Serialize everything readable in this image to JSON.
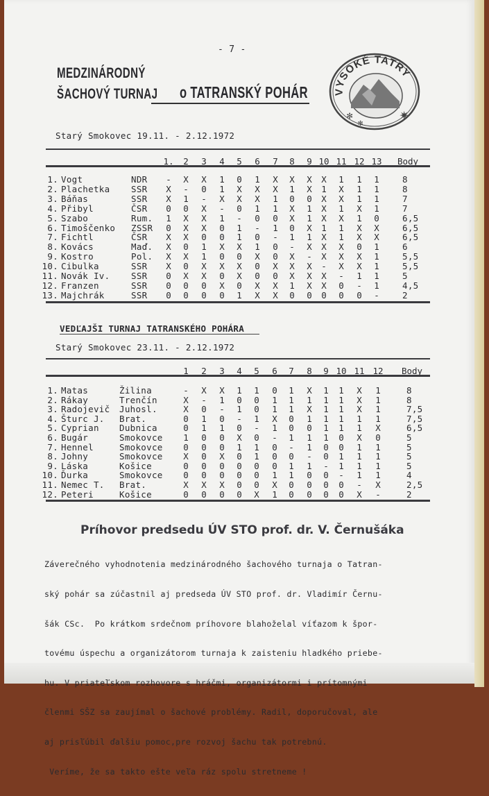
{
  "page_number": "- 7 -",
  "header": {
    "line1": "MEDZINÁRODNÝ",
    "line2": "ŠACHOVÝ TURNAJ",
    "cup": "o TATRANSKÝ POHÁR",
    "emblem_text": "VYSOKÉ TATRY"
  },
  "main_tournament": {
    "place_date": "Starý Smokovec 19.11. - 2.12.1972",
    "columns": [
      "1.",
      "2",
      "3",
      "4",
      "5",
      "6",
      "7",
      "8",
      "9",
      "10",
      "11",
      "12",
      "13"
    ],
    "points_header": "Body",
    "rows": [
      {
        "rank": "1.",
        "name": "Vogt",
        "country": "NDR",
        "results": [
          "-",
          "X",
          "X",
          "1",
          "0",
          "1",
          "X",
          "X",
          "X",
          "X",
          "1",
          "1",
          "1"
        ],
        "points": "8"
      },
      {
        "rank": "2.",
        "name": "Plachetka",
        "country": "SSR",
        "results": [
          "X",
          "-",
          "0",
          "1",
          "X",
          "X",
          "X",
          "1",
          "X",
          "1",
          "X",
          "1",
          "1"
        ],
        "points": "8"
      },
      {
        "rank": "3.",
        "name": "Báňas",
        "country": "SSR",
        "results": [
          "X",
          "1",
          "-",
          "X",
          "X",
          "X",
          "1",
          "0",
          "0",
          "X",
          "X",
          "1",
          "1"
        ],
        "points": "7"
      },
      {
        "rank": "4.",
        "name": "Přibyl",
        "country": "ČSR",
        "results": [
          "0",
          "0",
          "X",
          "-",
          "0",
          "1",
          "1",
          "X",
          "1",
          "X",
          "1",
          "X",
          "1"
        ],
        "points": "7"
      },
      {
        "rank": "5.",
        "name": "Szabo",
        "country": "Rum.",
        "results": [
          "1",
          "X",
          "X",
          "1",
          "-",
          "0",
          "0",
          "X",
          "1",
          "X",
          "X",
          "1",
          "0"
        ],
        "points": "6,5"
      },
      {
        "rank": "6.",
        "name": "Timoščenko",
        "country": "ZSSR",
        "results": [
          "0",
          "X",
          "X",
          "0",
          "1",
          "-",
          "1",
          "0",
          "X",
          "1",
          "1",
          "X",
          "X"
        ],
        "points": "6,5"
      },
      {
        "rank": "7.",
        "name": "Fichtl",
        "country": "ČSR",
        "results": [
          "X",
          "X",
          "0",
          "0",
          "1",
          "0",
          "-",
          "1",
          "1",
          "X",
          "1",
          "X",
          "X"
        ],
        "points": "6,5"
      },
      {
        "rank": "8.",
        "name": "Kovács",
        "country": "Maď.",
        "results": [
          "X",
          "0",
          "1",
          "X",
          "X",
          "1",
          "0",
          "-",
          "X",
          "X",
          "X",
          "0",
          "1"
        ],
        "points": "6"
      },
      {
        "rank": "9.",
        "name": "Kostro",
        "country": "Pol.",
        "results": [
          "X",
          "X",
          "1",
          "0",
          "0",
          "X",
          "0",
          "X",
          "-",
          "X",
          "X",
          "X",
          "1"
        ],
        "points": "5,5"
      },
      {
        "rank": "10.",
        "name": "Cibulka",
        "country": "SSR",
        "results": [
          "X",
          "0",
          "X",
          "X",
          "X",
          "0",
          "X",
          "X",
          "X",
          "-",
          "X",
          "X",
          "1"
        ],
        "points": "5,5"
      },
      {
        "rank": "11.",
        "name": "Novák Iv.",
        "country": "SSR",
        "results": [
          "0",
          "X",
          "X",
          "0",
          "X",
          "0",
          "0",
          "X",
          "X",
          "X",
          "-",
          "1",
          "1"
        ],
        "points": "5"
      },
      {
        "rank": "12.",
        "name": "Franzen",
        "country": "SSR",
        "results": [
          "0",
          "0",
          "0",
          "X",
          "0",
          "X",
          "X",
          "1",
          "X",
          "X",
          "0",
          "-",
          "1"
        ],
        "points": "4,5"
      },
      {
        "rank": "13.",
        "name": "Majchrák",
        "country": "SSR",
        "results": [
          "0",
          "0",
          "0",
          "0",
          "1",
          "X",
          "X",
          "0",
          "0",
          "0",
          "0",
          "0",
          "-"
        ],
        "points": "2"
      }
    ]
  },
  "side_tournament": {
    "title": "VEDĽAJŠI TURNAJ TATRANSKÉHO POHÁRA",
    "place_date": "Starý Smokovec 23.11. - 2.12.1972",
    "columns": [
      "1",
      "2",
      "3",
      "4",
      "5",
      "6",
      "7",
      "8",
      "9",
      "10",
      "11",
      "12"
    ],
    "points_header": "Body",
    "rows": [
      {
        "rank": "1.",
        "name": "Matas",
        "club": "Žilina",
        "results": [
          "-",
          "X",
          "X",
          "1",
          "1",
          "0",
          "1",
          "X",
          "1",
          "1",
          "X",
          "1"
        ],
        "points": "8"
      },
      {
        "rank": "2.",
        "name": "Rákay",
        "club": "Trenčín",
        "results": [
          "X",
          "-",
          "1",
          "0",
          "0",
          "1",
          "1",
          "1",
          "1",
          "1",
          "X",
          "1"
        ],
        "points": "8"
      },
      {
        "rank": "3.",
        "name": "Radojevič",
        "club": "Juhosl.",
        "results": [
          "X",
          "0",
          "-",
          "1",
          "0",
          "1",
          "1",
          "X",
          "1",
          "1",
          "X",
          "1"
        ],
        "points": "7,5"
      },
      {
        "rank": "4.",
        "name": "Šturc J.",
        "club": "Brat.",
        "results": [
          "0",
          "1",
          "0",
          "-",
          "1",
          "X",
          "0",
          "1",
          "1",
          "1",
          "1",
          "1"
        ],
        "points": "7,5"
      },
      {
        "rank": "5.",
        "name": "Cyprian",
        "club": "Dubnica",
        "results": [
          "0",
          "1",
          "1",
          "0",
          "-",
          "1",
          "0",
          "0",
          "1",
          "1",
          "1",
          "X"
        ],
        "points": "6,5"
      },
      {
        "rank": "6.",
        "name": "Bugár",
        "club": "Smokovce",
        "results": [
          "1",
          "0",
          "0",
          "X",
          "0",
          "-",
          "1",
          "1",
          "1",
          "0",
          "X",
          "0"
        ],
        "points": "5"
      },
      {
        "rank": "7.",
        "name": "Hennel",
        "club": "Smokovce",
        "results": [
          "0",
          "0",
          "0",
          "1",
          "1",
          "0",
          "-",
          "1",
          "0",
          "0",
          "1",
          "1"
        ],
        "points": "5"
      },
      {
        "rank": "8.",
        "name": "Johny",
        "club": "Smokovce",
        "results": [
          "X",
          "0",
          "X",
          "0",
          "1",
          "0",
          "0",
          "-",
          "0",
          "1",
          "1",
          "1"
        ],
        "points": "5"
      },
      {
        "rank": "9.",
        "name": "Láska",
        "club": "Košice",
        "results": [
          "0",
          "0",
          "0",
          "0",
          "0",
          "0",
          "1",
          "1",
          "-",
          "1",
          "1",
          "1"
        ],
        "points": "5"
      },
      {
        "rank": "10.",
        "name": "Ďurka",
        "club": "Smokovce",
        "results": [
          "0",
          "0",
          "0",
          "0",
          "0",
          "1",
          "1",
          "0",
          "0",
          "-",
          "1",
          "1"
        ],
        "points": "4"
      },
      {
        "rank": "11.",
        "name": "Nemec T.",
        "club": "Brat.",
        "results": [
          "X",
          "X",
          "X",
          "0",
          "0",
          "X",
          "0",
          "0",
          "0",
          "0",
          "-",
          "X"
        ],
        "points": "2,5"
      },
      {
        "rank": "12.",
        "name": "Peteri",
        "club": "Košice",
        "results": [
          "0",
          "0",
          "0",
          "0",
          "X",
          "1",
          "0",
          "0",
          "0",
          "0",
          "X",
          "-"
        ],
        "points": "2"
      }
    ]
  },
  "speech": {
    "title": "Príhovor predsedu ÚV STO prof. dr. V. Černušáka",
    "lines": [
      "Záverečného vyhodnotenia medzinárodného šachového turnaja o Tatran-",
      "ský pohár sa zúčastnil aj predseda ÚV STO prof. dr. Vladimír Černu-",
      "šák CSc.  Po krátkom srdečnom príhovore blahoželal víťazom k špor-",
      "tovému úspechu a organizátorom turnaja k zaisteniu hladkého priebe-",
      "hu. V priateľskom rozhovore s hráčmi, organizátormi i prítomnými",
      "členmi SŠZ sa zaujímal o šachové problémy. Radil, doporučoval, ale",
      "aj prisľúbil ďalšiu pomoc,pre rozvoj šachu tak potrebnú.",
      " Veríme, že sa takto ešte veľa ráz spolu stretneme !"
    ]
  }
}
